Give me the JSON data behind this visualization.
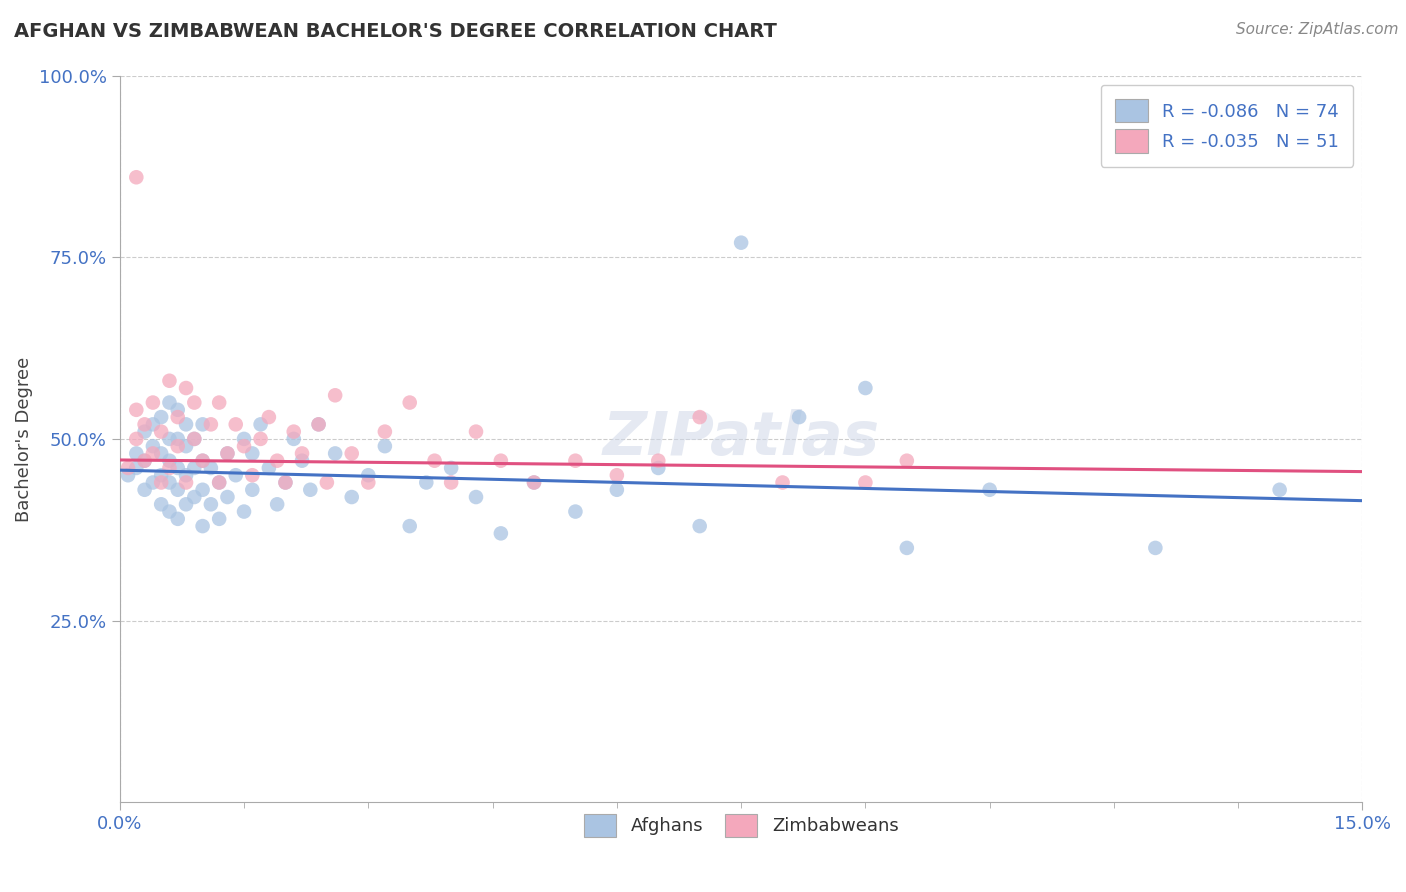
{
  "title": "AFGHAN VS ZIMBABWEAN BACHELOR'S DEGREE CORRELATION CHART",
  "source_text": "Source: ZipAtlas.com",
  "ylabel": "Bachelor's Degree",
  "xlabel": "",
  "xlim": [
    0.0,
    0.15
  ],
  "ylim": [
    0.0,
    1.0
  ],
  "x_ticks": [
    0.0,
    0.15
  ],
  "x_tick_labels": [
    "0.0%",
    "15.0%"
  ],
  "y_ticks": [
    0.25,
    0.5,
    0.75,
    1.0
  ],
  "y_tick_labels": [
    "25.0%",
    "50.0%",
    "75.0%",
    "100.0%"
  ],
  "afghan_color": "#aac4e2",
  "zimbabwean_color": "#f4a8bc",
  "afghan_line_color": "#4472c4",
  "zimbabwean_line_color": "#e05080",
  "legend_text_color": "#4472c4",
  "legend_label1": "R = -0.086   N = 74",
  "legend_label2": "R = -0.035   N = 51",
  "watermark": "ZIPatlas",
  "afghan_scatter_x": [
    0.001,
    0.002,
    0.002,
    0.003,
    0.003,
    0.003,
    0.004,
    0.004,
    0.004,
    0.005,
    0.005,
    0.005,
    0.005,
    0.006,
    0.006,
    0.006,
    0.006,
    0.006,
    0.007,
    0.007,
    0.007,
    0.007,
    0.007,
    0.008,
    0.008,
    0.008,
    0.008,
    0.009,
    0.009,
    0.009,
    0.01,
    0.01,
    0.01,
    0.01,
    0.011,
    0.011,
    0.012,
    0.012,
    0.013,
    0.013,
    0.014,
    0.015,
    0.015,
    0.016,
    0.016,
    0.017,
    0.018,
    0.019,
    0.02,
    0.021,
    0.022,
    0.023,
    0.024,
    0.026,
    0.028,
    0.03,
    0.032,
    0.035,
    0.037,
    0.04,
    0.043,
    0.046,
    0.05,
    0.055,
    0.06,
    0.065,
    0.07,
    0.075,
    0.082,
    0.09,
    0.095,
    0.105,
    0.125,
    0.14
  ],
  "afghan_scatter_y": [
    0.45,
    0.46,
    0.48,
    0.43,
    0.47,
    0.51,
    0.44,
    0.49,
    0.52,
    0.41,
    0.45,
    0.48,
    0.53,
    0.4,
    0.44,
    0.47,
    0.5,
    0.55,
    0.39,
    0.43,
    0.46,
    0.5,
    0.54,
    0.41,
    0.45,
    0.49,
    0.52,
    0.42,
    0.46,
    0.5,
    0.38,
    0.43,
    0.47,
    0.52,
    0.41,
    0.46,
    0.39,
    0.44,
    0.42,
    0.48,
    0.45,
    0.4,
    0.5,
    0.43,
    0.48,
    0.52,
    0.46,
    0.41,
    0.44,
    0.5,
    0.47,
    0.43,
    0.52,
    0.48,
    0.42,
    0.45,
    0.49,
    0.38,
    0.44,
    0.46,
    0.42,
    0.37,
    0.44,
    0.4,
    0.43,
    0.46,
    0.38,
    0.77,
    0.53,
    0.57,
    0.35,
    0.43,
    0.35,
    0.43
  ],
  "zimbabwean_scatter_x": [
    0.001,
    0.002,
    0.002,
    0.003,
    0.003,
    0.004,
    0.004,
    0.005,
    0.005,
    0.006,
    0.006,
    0.007,
    0.007,
    0.008,
    0.008,
    0.009,
    0.009,
    0.01,
    0.011,
    0.012,
    0.012,
    0.013,
    0.014,
    0.015,
    0.016,
    0.017,
    0.018,
    0.019,
    0.02,
    0.021,
    0.022,
    0.024,
    0.025,
    0.026,
    0.028,
    0.03,
    0.032,
    0.035,
    0.038,
    0.04,
    0.043,
    0.046,
    0.05,
    0.055,
    0.06,
    0.065,
    0.07,
    0.08,
    0.09,
    0.095,
    0.002
  ],
  "zimbabwean_scatter_y": [
    0.46,
    0.5,
    0.54,
    0.47,
    0.52,
    0.55,
    0.48,
    0.51,
    0.44,
    0.58,
    0.46,
    0.53,
    0.49,
    0.57,
    0.44,
    0.5,
    0.55,
    0.47,
    0.52,
    0.44,
    0.55,
    0.48,
    0.52,
    0.49,
    0.45,
    0.5,
    0.53,
    0.47,
    0.44,
    0.51,
    0.48,
    0.52,
    0.44,
    0.56,
    0.48,
    0.44,
    0.51,
    0.55,
    0.47,
    0.44,
    0.51,
    0.47,
    0.44,
    0.47,
    0.45,
    0.47,
    0.53,
    0.44,
    0.44,
    0.47,
    0.86
  ],
  "afghan_trend_x": [
    0.0,
    0.15
  ],
  "afghan_trend_y": [
    0.457,
    0.415
  ],
  "zimbabwean_trend_x": [
    0.0,
    0.15
  ],
  "zimbabwean_trend_y": [
    0.471,
    0.455
  ]
}
